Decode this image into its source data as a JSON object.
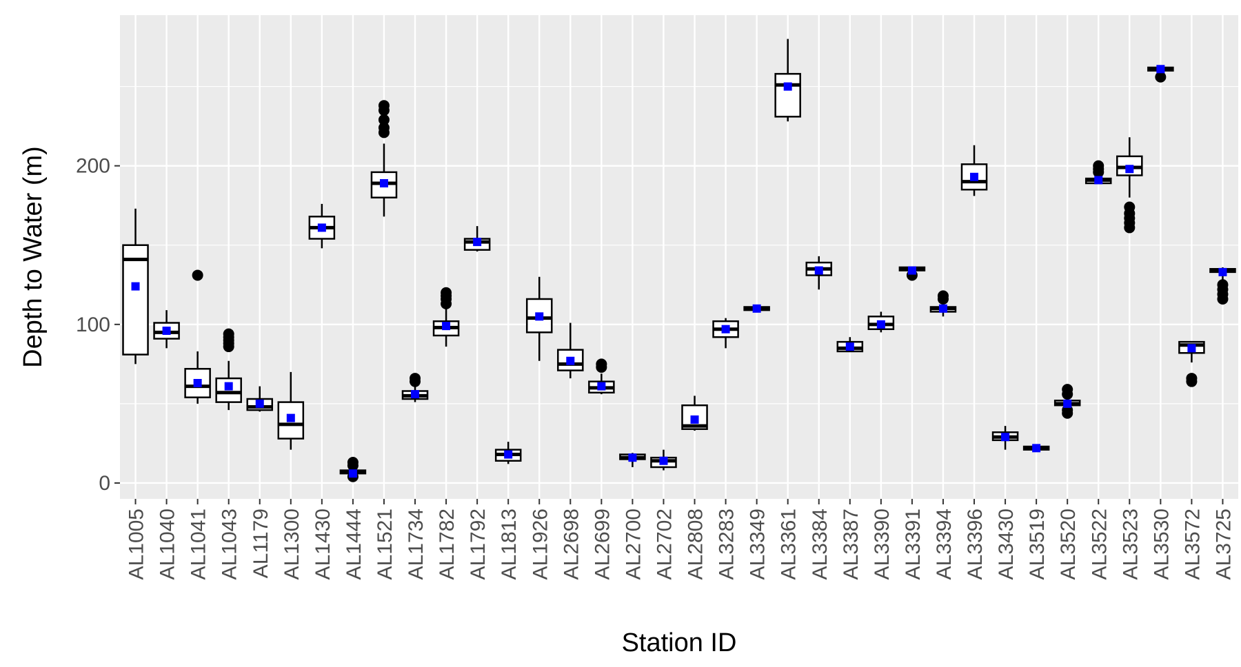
{
  "chart_data": {
    "type": "boxplot",
    "xlabel": "Station ID",
    "ylabel": "Depth to Water (m)",
    "ylim": [
      -10,
      295
    ],
    "yticks": [
      0,
      100,
      200
    ],
    "grid": true,
    "colors": {
      "panel": "#EBEBEB",
      "grid": "#FFFFFF",
      "box_fill": "#FFFFFF",
      "box_stroke": "#000000",
      "mean_marker": "#0000FF",
      "outlier": "#000000"
    },
    "categories": [
      "AL1005",
      "AL1040",
      "AL1041",
      "AL1043",
      "AL1179",
      "AL1300",
      "AL1430",
      "AL1444",
      "AL1521",
      "AL1734",
      "AL1782",
      "AL1792",
      "AL1813",
      "AL1926",
      "AL2698",
      "AL2699",
      "AL2700",
      "AL2702",
      "AL2808",
      "AL3283",
      "AL3349",
      "AL3361",
      "AL3384",
      "AL3387",
      "AL3390",
      "AL3391",
      "AL3394",
      "AL3396",
      "AL3430",
      "AL3519",
      "AL3520",
      "AL3522",
      "AL3523",
      "AL3530",
      "AL3572",
      "AL3725"
    ],
    "boxes": [
      {
        "station": "AL1005",
        "min": 75,
        "q1": 81,
        "median": 141,
        "q3": 150,
        "max": 173,
        "mean": 124,
        "outliers": []
      },
      {
        "station": "AL1040",
        "min": 85,
        "q1": 91,
        "median": 95,
        "q3": 101,
        "max": 109,
        "mean": 96,
        "outliers": []
      },
      {
        "station": "AL1041",
        "min": 50,
        "q1": 54,
        "median": 61,
        "q3": 72,
        "max": 83,
        "mean": 63,
        "outliers": [
          131
        ]
      },
      {
        "station": "AL1043",
        "min": 46,
        "q1": 51,
        "median": 57,
        "q3": 66,
        "max": 77,
        "mean": 61,
        "outliers": [
          86,
          88,
          90,
          92,
          94
        ]
      },
      {
        "station": "AL1179",
        "min": 45,
        "q1": 46,
        "median": 48,
        "q3": 53,
        "max": 61,
        "mean": 50,
        "outliers": []
      },
      {
        "station": "AL1300",
        "min": 21,
        "q1": 28,
        "median": 37,
        "q3": 51,
        "max": 70,
        "mean": 41,
        "outliers": []
      },
      {
        "station": "AL1430",
        "min": 148,
        "q1": 154,
        "median": 161,
        "q3": 168,
        "max": 176,
        "mean": 161,
        "outliers": []
      },
      {
        "station": "AL1444",
        "min": 5,
        "q1": 6,
        "median": 7,
        "q3": 8,
        "max": 9,
        "mean": 6,
        "outliers": [
          4,
          11,
          13
        ]
      },
      {
        "station": "AL1521",
        "min": 168,
        "q1": 180,
        "median": 189,
        "q3": 196,
        "max": 214,
        "mean": 189,
        "outliers": [
          221,
          224,
          229,
          235,
          238
        ]
      },
      {
        "station": "AL1734",
        "min": 51,
        "q1": 53,
        "median": 55,
        "q3": 58,
        "max": 61,
        "mean": 56,
        "outliers": [
          64,
          66
        ]
      },
      {
        "station": "AL1782",
        "min": 86,
        "q1": 93,
        "median": 98,
        "q3": 102,
        "max": 110,
        "mean": 99,
        "outliers": [
          113,
          116,
          118,
          120
        ]
      },
      {
        "station": "AL1792",
        "min": 146,
        "q1": 147,
        "median": 152,
        "q3": 154,
        "max": 162,
        "mean": 152,
        "outliers": []
      },
      {
        "station": "AL1813",
        "min": 12,
        "q1": 14,
        "median": 18,
        "q3": 21,
        "max": 26,
        "mean": 18,
        "outliers": []
      },
      {
        "station": "AL1926",
        "min": 77,
        "q1": 95,
        "median": 104,
        "q3": 116,
        "max": 130,
        "mean": 105,
        "outliers": []
      },
      {
        "station": "AL2698",
        "min": 66,
        "q1": 71,
        "median": 75,
        "q3": 84,
        "max": 101,
        "mean": 77,
        "outliers": []
      },
      {
        "station": "AL2699",
        "min": 56,
        "q1": 57,
        "median": 60,
        "q3": 64,
        "max": 69,
        "mean": 61,
        "outliers": [
          73,
          75
        ]
      },
      {
        "station": "AL2700",
        "min": 10,
        "q1": 15,
        "median": 16,
        "q3": 18,
        "max": 19,
        "mean": 16,
        "outliers": []
      },
      {
        "station": "AL2702",
        "min": 8,
        "q1": 10,
        "median": 14,
        "q3": 16,
        "max": 21,
        "mean": 14,
        "outliers": []
      },
      {
        "station": "AL2808",
        "min": 33,
        "q1": 34,
        "median": 36,
        "q3": 49,
        "max": 55,
        "mean": 40,
        "outliers": []
      },
      {
        "station": "AL3283",
        "min": 85,
        "q1": 92,
        "median": 97,
        "q3": 102,
        "max": 104,
        "mean": 97,
        "outliers": []
      },
      {
        "station": "AL3349",
        "min": 109,
        "q1": 109,
        "median": 110,
        "q3": 111,
        "max": 111,
        "mean": 110,
        "outliers": []
      },
      {
        "station": "AL3361",
        "min": 228,
        "q1": 231,
        "median": 251,
        "q3": 258,
        "max": 280,
        "mean": 250,
        "outliers": []
      },
      {
        "station": "AL3384",
        "min": 122,
        "q1": 131,
        "median": 135,
        "q3": 139,
        "max": 143,
        "mean": 134,
        "outliers": []
      },
      {
        "station": "AL3387",
        "min": 83,
        "q1": 83,
        "median": 85,
        "q3": 89,
        "max": 92,
        "mean": 86,
        "outliers": []
      },
      {
        "station": "AL3390",
        "min": 95,
        "q1": 97,
        "median": 100,
        "q3": 105,
        "max": 108,
        "mean": 100,
        "outliers": []
      },
      {
        "station": "AL3391",
        "min": 133,
        "q1": 134,
        "median": 135,
        "q3": 136,
        "max": 136,
        "mean": 134,
        "outliers": [
          131
        ]
      },
      {
        "station": "AL3394",
        "min": 105,
        "q1": 108,
        "median": 110,
        "q3": 111,
        "max": 113,
        "mean": 110,
        "outliers": [
          116,
          118
        ]
      },
      {
        "station": "AL3396",
        "min": 181,
        "q1": 185,
        "median": 190,
        "q3": 201,
        "max": 213,
        "mean": 193,
        "outliers": []
      },
      {
        "station": "AL3430",
        "min": 21,
        "q1": 27,
        "median": 29,
        "q3": 32,
        "max": 36,
        "mean": 29,
        "outliers": []
      },
      {
        "station": "AL3519",
        "min": 21,
        "q1": 21,
        "median": 22,
        "q3": 23,
        "max": 23,
        "mean": 22,
        "outliers": []
      },
      {
        "station": "AL3520",
        "min": 47,
        "q1": 49,
        "median": 50,
        "q3": 52,
        "max": 54,
        "mean": 50,
        "outliers": [
          44,
          46,
          56,
          59
        ]
      },
      {
        "station": "AL3522",
        "min": 189,
        "q1": 189,
        "median": 191,
        "q3": 192,
        "max": 194,
        "mean": 191,
        "outliers": [
          196,
          198,
          200
        ]
      },
      {
        "station": "AL3523",
        "min": 180,
        "q1": 194,
        "median": 199,
        "q3": 206,
        "max": 218,
        "mean": 198,
        "outliers": [
          161,
          164,
          167,
          170,
          174
        ]
      },
      {
        "station": "AL3530",
        "min": 259,
        "q1": 260,
        "median": 261,
        "q3": 262,
        "max": 262,
        "mean": 261,
        "outliers": [
          256
        ]
      },
      {
        "station": "AL3572",
        "min": 76,
        "q1": 82,
        "median": 87,
        "q3": 89,
        "max": 89,
        "mean": 85,
        "outliers": [
          64,
          66
        ]
      },
      {
        "station": "AL3725",
        "min": 120,
        "q1": 133,
        "median": 134,
        "q3": 135,
        "max": 136,
        "mean": 133,
        "outliers": [
          116,
          119,
          122,
          125
        ]
      }
    ]
  }
}
